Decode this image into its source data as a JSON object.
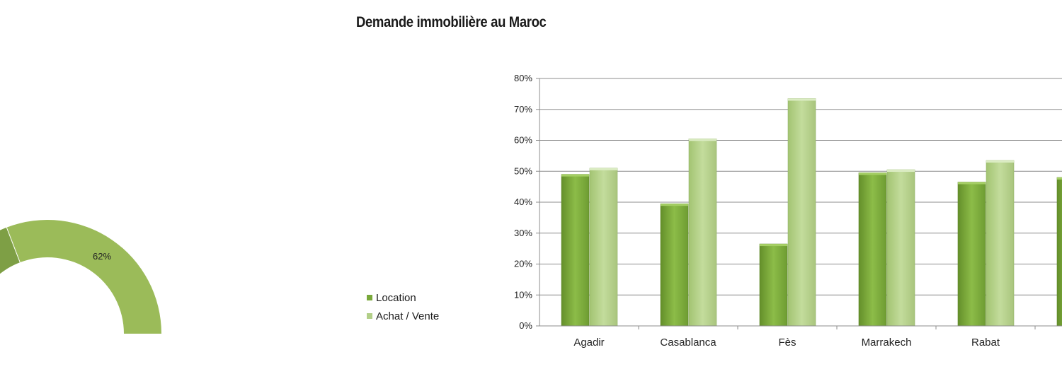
{
  "colors": {
    "location": "#79a83a",
    "achat": "#b2cf88",
    "donut_main": "#9bbb59",
    "donut_secondary": "#7e9f45",
    "gridline": "#8c8c8c"
  },
  "donut": {
    "label_visible": "62%",
    "main_fraction": 0.62
  },
  "chart_data": [
    {
      "type": "bar",
      "title": "Demande immobilière au Maroc",
      "categories": [
        "Agadir",
        "Casablanca",
        "Fès",
        "Marrakech",
        "Rabat",
        ""
      ],
      "series": [
        {
          "name": "Location",
          "values": [
            49,
            39.5,
            26.5,
            49.5,
            46.5,
            48
          ]
        },
        {
          "name": "Achat / Vente",
          "values": [
            51,
            60.5,
            73.5,
            50.5,
            53.5,
            null
          ]
        }
      ],
      "ylim": [
        0,
        80
      ],
      "yticks": [
        "0%",
        "10%",
        "20%",
        "30%",
        "40%",
        "50%",
        "60%",
        "70%",
        "80%"
      ],
      "grid": true,
      "legend": "left"
    }
  ]
}
